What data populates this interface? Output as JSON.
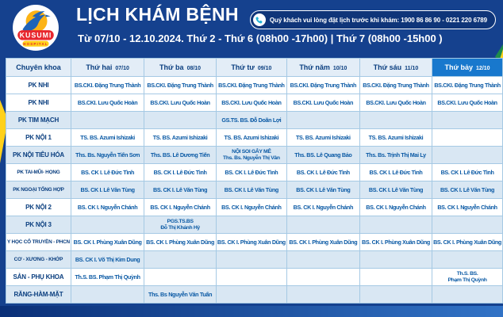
{
  "logo": {
    "name": "KUSUMI",
    "subname": "HOSPITAL"
  },
  "header": {
    "title": "LỊCH KHÁM BỆNH",
    "booking_note": "Quý khách vui lòng đặt lịch trước khi khám: 1900 86 86 90 - 0221 220 6789",
    "date_range": "Từ  07/10 - 12.10.2024. Thứ 2 - Thứ 6 (08h00 -17h00) | Thứ 7 (08h00 -15h00 )"
  },
  "colors": {
    "banner_navy": "#15418e",
    "saturday_highlight": "#1878cd",
    "row_alt_blue": "#d9e7f3",
    "doctor_text_blue": "#0b5aa5",
    "deco_yellow": "#ffd11a"
  },
  "schedule": {
    "columns": [
      {
        "label": "Chuyên khoa",
        "date": "",
        "highlighted": false
      },
      {
        "label": "Thứ hai",
        "date": "07/10",
        "highlighted": false
      },
      {
        "label": "Thứ ba",
        "date": "08/10",
        "highlighted": false
      },
      {
        "label": "Thứ tư",
        "date": "09/10",
        "highlighted": false
      },
      {
        "label": "Thứ năm",
        "date": "10/10",
        "highlighted": false
      },
      {
        "label": "Thứ sáu",
        "date": "11/10",
        "highlighted": false
      },
      {
        "label": "Thứ bảy",
        "date": "12/10",
        "highlighted": true
      }
    ],
    "rows": [
      {
        "specialty": "PK NHI",
        "cells": [
          "BS.CKI. Đặng Trung Thành",
          "BS.CKI. Đặng Trung Thành",
          "BS.CKI. Đặng Trung Thành",
          "BS.CKI. Đặng Trung Thành",
          "BS.CKI. Đặng Trung Thành",
          "BS.CKI. Đặng Trung Thành"
        ]
      },
      {
        "specialty": "PK NHI",
        "cells": [
          "BS.CKI. Lưu Quốc Hoàn",
          "BS.CKI. Lưu Quốc Hoàn",
          "BS.CKI. Lưu Quốc Hoàn",
          "BS.CKI. Lưu Quốc Hoàn",
          "BS.CKI. Lưu Quốc Hoàn",
          "BS.CKI. Lưu Quốc Hoàn"
        ]
      },
      {
        "specialty": "PK TIM MẠCH",
        "cells": [
          "",
          "",
          "GS.TS. BS. Đỗ Doãn Lợi",
          "",
          "",
          ""
        ]
      },
      {
        "specialty": "PK NỘI 1",
        "cells": [
          "TS. BS. Azumi Ishizaki",
          "TS. BS. Azumi Ishizaki",
          "TS. BS. Azumi Ishizaki",
          "TS. BS. Azumi Ishizaki",
          "TS. BS. Azumi Ishizaki",
          ""
        ]
      },
      {
        "specialty": "PK NỘI TIÊU HÓA",
        "cells": [
          "Ths. Bs. Nguyễn Tiến Sơn",
          "Ths. BS. Lê Dương Tiến",
          "NỘI SOI GÂY MÊ\nThs. Bs. Nguyễn Thị Vân",
          "Ths. BS. Lê Quang Bảo",
          "Ths. Bs. Trịnh Thị Mai Ly",
          ""
        ]
      },
      {
        "specialty": "PK TAI-MŨI- HỌNG",
        "cells": [
          "BS. CK I. Lê Đức Tình",
          "BS. CK I. Lê Đức Tình",
          "BS. CK I. Lê Đức Tình",
          "BS. CK I. Lê Đức Tình",
          "BS. CK I. Lê Đức Tình",
          "BS. CK I. Lê Đức Tình"
        ]
      },
      {
        "specialty": "PK NGOẠI TỔNG HỢP",
        "cells": [
          "BS. CK I. Lê Văn Tùng",
          "BS. CK I. Lê Văn Tùng",
          "BS. CK I. Lê Văn Tùng",
          "BS. CK I. Lê Văn Tùng",
          "BS. CK I. Lê Văn Tùng",
          "BS. CK I. Lê Văn Tùng"
        ]
      },
      {
        "specialty": "PK NỘI 2",
        "cells": [
          "BS. CK I. Nguyễn Chánh",
          "BS. CK I. Nguyễn Chánh",
          "BS. CK I. Nguyễn Chánh",
          "BS. CK I. Nguyễn Chánh",
          "BS. CK I. Nguyễn Chánh",
          "BS. CK I. Nguyễn Chánh"
        ]
      },
      {
        "specialty": "PK NỘI 3",
        "cells": [
          "",
          "PGS.TS.BS\nĐỗ Thị Khánh Hỷ",
          "",
          "",
          "",
          ""
        ]
      },
      {
        "specialty": "Y HỌC CỔ TRUYỀN - PHCN",
        "cells": [
          "BS. CK I. Phùng Xuân Dũng",
          "BS. CK I. Phùng Xuân Dũng",
          "BS. CK I. Phùng Xuân Dũng",
          "BS. CK I. Phùng Xuân Dũng",
          "BS. CK I. Phùng Xuân Dũng",
          "BS. CK I. Phùng Xuân Dũng"
        ]
      },
      {
        "specialty": "CƠ - XƯƠNG - KHỚP",
        "cells": [
          "BS. CK I. Võ Thị Kim Dung",
          "",
          "",
          "",
          "",
          ""
        ]
      },
      {
        "specialty": "SẢN - PHỤ KHOA",
        "cells": [
          "Th.S. BS. Phạm Thị Quỳnh",
          "",
          "",
          "",
          "",
          "Th.S. BS.\nPhạm Thị Quỳnh"
        ]
      },
      {
        "specialty": "RĂNG-HÀM-MẶT",
        "cells": [
          "",
          "Ths. Bs Nguyễn Văn Tuấn",
          "",
          "",
          "",
          ""
        ]
      }
    ]
  }
}
